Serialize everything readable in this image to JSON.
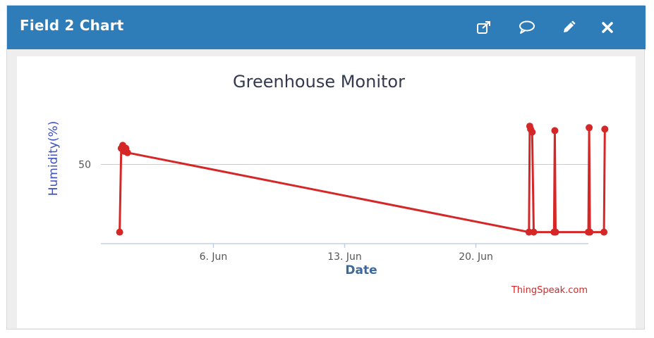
{
  "window": {
    "title": "Field 2 Chart",
    "icons": [
      "external-link-icon",
      "comment-icon",
      "pencil-icon",
      "close-icon"
    ],
    "header_color": "#2e7db8"
  },
  "chart_data": {
    "type": "line",
    "title": "Greenhouse Monitor",
    "xlabel": "Date",
    "ylabel": "Humidity(%)",
    "credit": "ThingSpeak.com",
    "x_ticks": [
      "6. Jun",
      "13. Jun",
      "20. Jun"
    ],
    "y_ticks": [
      "50"
    ],
    "xlim": [
      "2021-05-31T00:00",
      "2021-06-26T00:00"
    ],
    "ylim": [
      0,
      90
    ],
    "gridlines": "horizontal",
    "line_color": "#d62728",
    "series": [
      {
        "x": [
          "2021-06-01T00:00",
          "2021-06-01T02:00",
          "2021-06-01T04:00",
          "2021-06-01T06:00",
          "2021-06-01T08:00",
          "2021-06-01T10:00",
          "2021-06-22T20:00",
          "2021-06-22T21:00",
          "2021-06-22T22:00",
          "2021-06-23T00:00",
          "2021-06-23T02:00",
          "2021-06-24T04:00",
          "2021-06-24T05:00",
          "2021-06-24T06:00",
          "2021-06-26T00:00",
          "2021-06-26T01:00",
          "2021-06-26T02:00",
          "2021-06-26T20:00",
          "2021-06-26T21:00"
        ],
        "y": [
          4,
          61,
          63,
          59,
          61,
          58,
          4,
          76,
          74,
          72,
          4,
          4,
          73,
          4,
          4,
          75,
          4,
          4,
          74
        ]
      }
    ]
  }
}
